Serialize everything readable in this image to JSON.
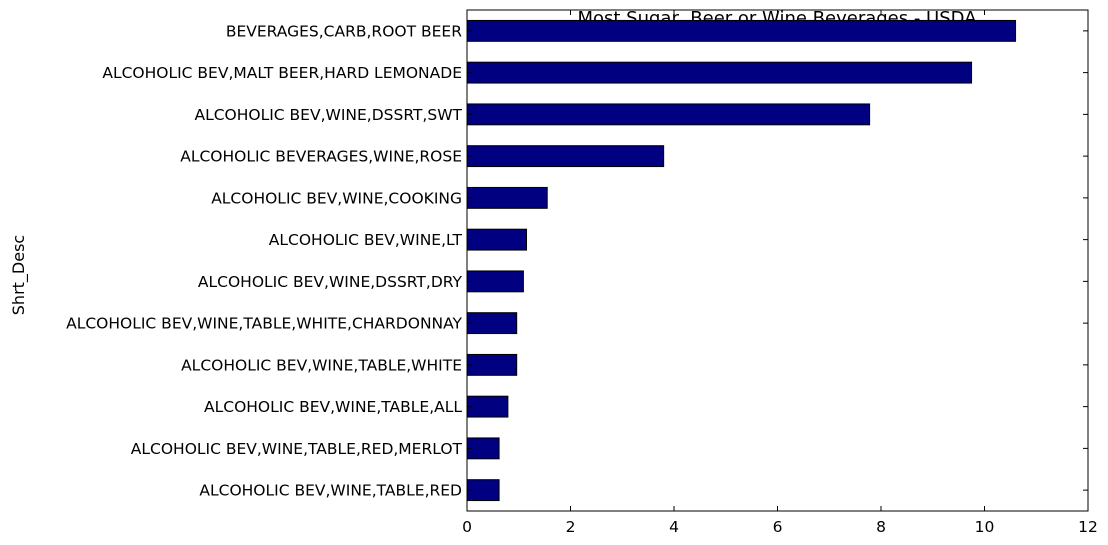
{
  "chart_data": {
    "type": "bar",
    "orientation": "horizontal",
    "title": "Most Sugar, Beer or Wine Beverages - USDA",
    "xlabel": "",
    "ylabel": "Shrt_Desc",
    "xlim": [
      0,
      12
    ],
    "xticks": [
      "0",
      "2",
      "4",
      "6",
      "8",
      "10",
      "12"
    ],
    "grid": false,
    "bar_color": "#000080",
    "categories": [
      "ALCOHOLIC BEV,WINE,TABLE,RED",
      "ALCOHOLIC BEV,WINE,TABLE,RED,MERLOT",
      "ALCOHOLIC BEV,WINE,TABLE,ALL",
      "ALCOHOLIC BEV,WINE,TABLE,WHITE",
      "ALCOHOLIC BEV,WINE,TABLE,WHITE,CHARDONNAY",
      "ALCOHOLIC BEV,WINE,DSSRT,DRY",
      "ALCOHOLIC BEV,WINE,LT",
      "ALCOHOLIC BEV,WINE,COOKING",
      "ALCOHOLIC BEVERAGES,WINE,ROSE",
      "ALCOHOLIC BEV,WINE,DSSRT,SWT",
      "ALCOHOLIC BEV,MALT BEER,HARD LEMONADE",
      "BEVERAGES,CARB,ROOT BEER"
    ],
    "values": [
      0.62,
      0.62,
      0.79,
      0.96,
      0.96,
      1.09,
      1.15,
      1.55,
      3.8,
      7.78,
      9.75,
      10.6
    ]
  }
}
